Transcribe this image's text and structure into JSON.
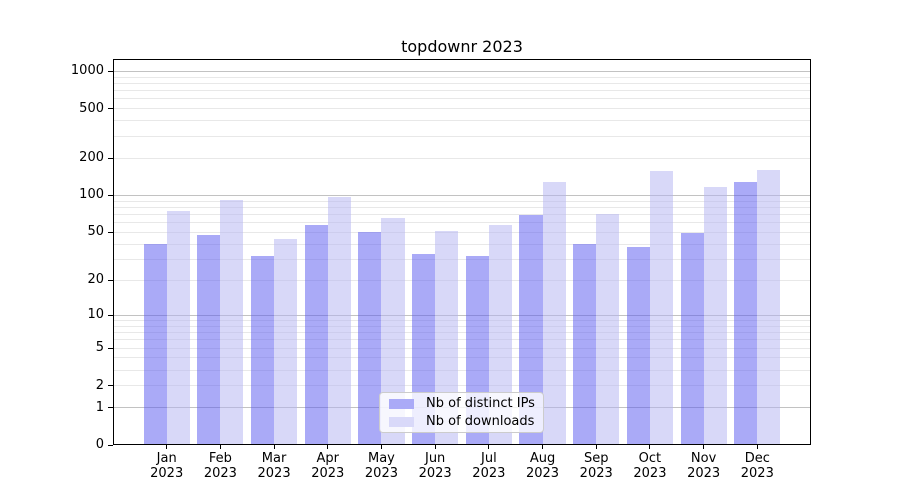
{
  "chart_data": {
    "type": "bar",
    "title": "topdownr 2023",
    "scale": "log1p",
    "ylim": [
      0,
      1258
    ],
    "yticks": [
      1000,
      500,
      200,
      100,
      50,
      20,
      10,
      5,
      2,
      1,
      0
    ],
    "categories": [
      "Jan",
      "Feb",
      "Mar",
      "Apr",
      "May",
      "Jun",
      "Jul",
      "Aug",
      "Sep",
      "Oct",
      "Nov",
      "Dec"
    ],
    "year": "2023",
    "series": [
      {
        "name": "Nb of distinct IPs",
        "color": "rgba(86,86,240,0.5)",
        "legend_swatch": "#aaaaf7",
        "values": [
          40,
          48,
          32,
          57,
          50,
          33,
          32,
          69,
          40,
          38,
          49,
          128
        ]
      },
      {
        "name": "Nb of downloads",
        "color": "rgba(178,178,242,0.5)",
        "legend_swatch": "#d9d9f9",
        "values": [
          75,
          92,
          44,
          97,
          66,
          51,
          58,
          129,
          70,
          158,
          116,
          161
        ]
      }
    ],
    "gridlines": {
      "major": [
        1,
        10,
        100,
        1000
      ],
      "minor": [
        2,
        3,
        4,
        5,
        6,
        7,
        8,
        9,
        20,
        30,
        40,
        50,
        60,
        70,
        80,
        90,
        200,
        300,
        400,
        500,
        600,
        700,
        800,
        900
      ]
    },
    "legend_position": "lower center",
    "grid_colors": {
      "major": "#c2c2c2",
      "minor": "#e8e8e8"
    }
  }
}
